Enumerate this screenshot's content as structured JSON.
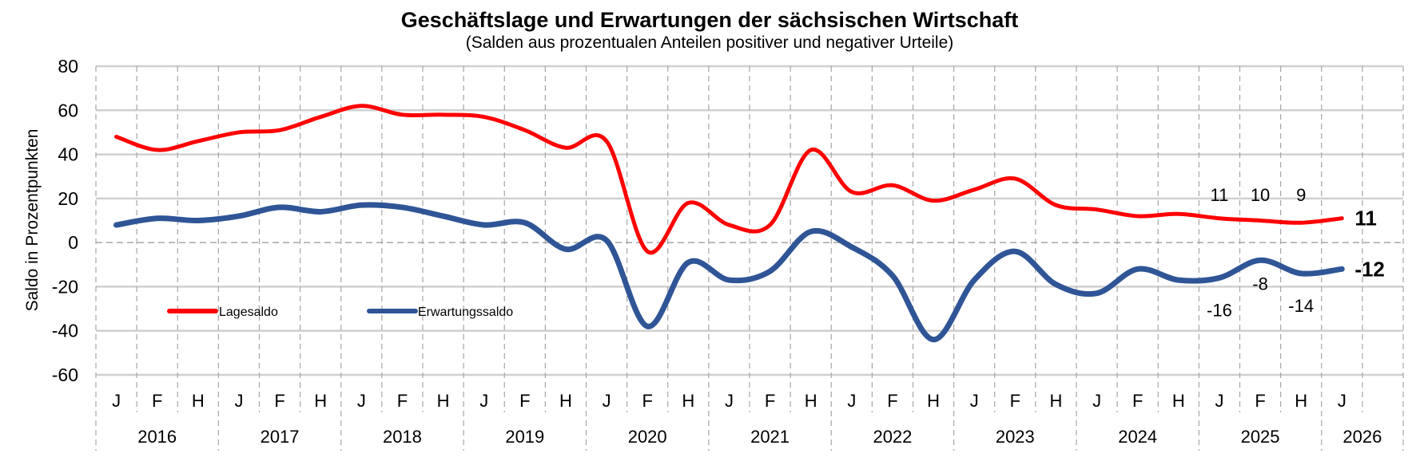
{
  "chart_data": {
    "type": "line",
    "title": "Geschäftslage und Erwartungen der sächsischen Wirtschaft",
    "subtitle": "(Salden aus prozentualen Anteilen positiver und negativer Urteile)",
    "xlabel": "",
    "ylabel": "Saldo in Prozentpunkten",
    "ylim": [
      -60,
      80
    ],
    "yticks": [
      80,
      60,
      40,
      20,
      0,
      -20,
      -40,
      -60
    ],
    "grid": true,
    "legend_position": "lower-left",
    "categories": [
      "J",
      "F",
      "H",
      "J",
      "F",
      "H",
      "J",
      "F",
      "H",
      "J",
      "F",
      "H",
      "J",
      "F",
      "H",
      "J",
      "F",
      "H",
      "J",
      "F",
      "H",
      "J",
      "F",
      "H",
      "J",
      "F",
      "H",
      "J",
      "F",
      "H",
      "J",
      ""
    ],
    "years": [
      {
        "label": "2016",
        "span": 3
      },
      {
        "label": "2017",
        "span": 3
      },
      {
        "label": "2018",
        "span": 3
      },
      {
        "label": "2019",
        "span": 3
      },
      {
        "label": "2020",
        "span": 3
      },
      {
        "label": "2021",
        "span": 3
      },
      {
        "label": "2022",
        "span": 3
      },
      {
        "label": "2023",
        "span": 3
      },
      {
        "label": "2024",
        "span": 3
      },
      {
        "label": "2025",
        "span": 3
      },
      {
        "label": "2026",
        "span": 2
      }
    ],
    "series": [
      {
        "name": "Lagesaldo",
        "color": "#ff0000",
        "values": [
          48,
          42,
          46,
          50,
          51,
          57,
          62,
          58,
          58,
          57,
          51,
          43,
          46,
          -4,
          18,
          8,
          8,
          42,
          23,
          26,
          19,
          24,
          29,
          17,
          15,
          12,
          13,
          11,
          10,
          9,
          11
        ],
        "labels": [
          {
            "index": 27,
            "text": "11",
            "bold": false,
            "position": "above"
          },
          {
            "index": 28,
            "text": "10",
            "bold": false,
            "position": "above"
          },
          {
            "index": 29,
            "text": "9",
            "bold": false,
            "position": "above"
          },
          {
            "index": 30,
            "text": "11",
            "bold": true,
            "position": "right"
          }
        ]
      },
      {
        "name": "Erwartungssaldo",
        "color": "#2f5597",
        "values": [
          8,
          11,
          10,
          12,
          16,
          14,
          17,
          16,
          12,
          8,
          9,
          -3,
          1,
          -38,
          -9,
          -17,
          -13,
          5,
          -2,
          -15,
          -44,
          -17,
          -4,
          -19,
          -23,
          -12,
          -17,
          -16,
          -8,
          -14,
          -12
        ],
        "labels": [
          {
            "index": 27,
            "text": "-16",
            "bold": false,
            "position": "below"
          },
          {
            "index": 28,
            "text": "-8",
            "bold": false,
            "position": "below"
          },
          {
            "index": 29,
            "text": "-14",
            "bold": false,
            "position": "below"
          },
          {
            "index": 30,
            "text": "-12",
            "bold": true,
            "position": "right"
          }
        ]
      }
    ]
  }
}
